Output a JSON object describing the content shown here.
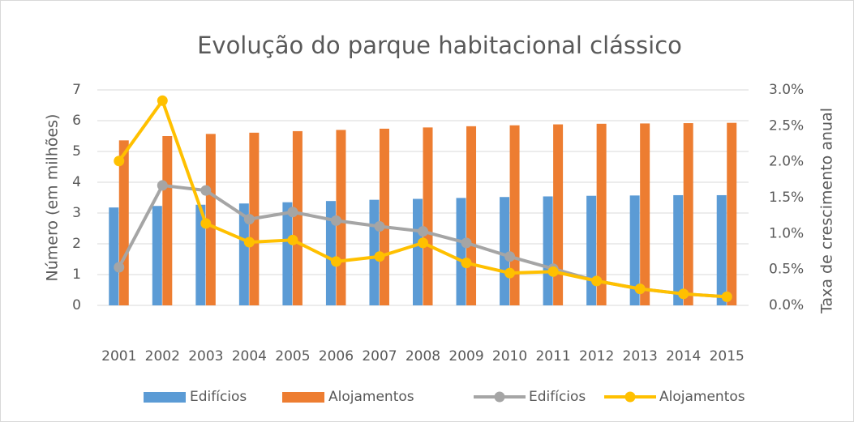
{
  "chart_data": {
    "type": "bar",
    "title": "Evolução do parque habitacional clássico",
    "y_label": "Número (em milhões)",
    "y2_label": "Taxa de crescimento anual",
    "categories": [
      "2001",
      "2002",
      "2003",
      "2004",
      "2005",
      "2006",
      "2007",
      "2008",
      "2009",
      "2010",
      "2011",
      "2012",
      "2013",
      "2014",
      "2015"
    ],
    "series": [
      {
        "name": "Edifícios",
        "type": "bar",
        "color": "#5b9bd5",
        "values": [
          3.18,
          3.23,
          3.27,
          3.31,
          3.35,
          3.39,
          3.43,
          3.46,
          3.49,
          3.52,
          3.54,
          3.56,
          3.57,
          3.58,
          3.58
        ]
      },
      {
        "name": "Alojamentos",
        "type": "bar",
        "color": "#ed7d31",
        "values": [
          5.36,
          5.5,
          5.57,
          5.61,
          5.66,
          5.7,
          5.74,
          5.78,
          5.82,
          5.85,
          5.88,
          5.9,
          5.91,
          5.92,
          5.93
        ]
      },
      {
        "name": "Edifícios",
        "type": "line",
        "axis": "y2",
        "color": "#a5a5a5",
        "values": [
          0.53,
          1.67,
          1.6,
          1.2,
          1.3,
          1.18,
          1.1,
          1.03,
          0.87,
          0.68,
          0.51,
          0.34,
          0.23,
          0.16,
          0.12
        ]
      },
      {
        "name": "Alojamentos",
        "type": "line",
        "axis": "y2",
        "color": "#ffc000",
        "values": [
          2.01,
          2.85,
          1.14,
          0.88,
          0.91,
          0.61,
          0.68,
          0.87,
          0.59,
          0.45,
          0.47,
          0.34,
          0.23,
          0.16,
          0.12
        ]
      }
    ],
    "ylim": [
      0,
      7
    ],
    "yticks": [
      0,
      1,
      2,
      3,
      4,
      5,
      6,
      7
    ],
    "y2lim": [
      0,
      3
    ],
    "y2ticks": [
      {
        "value": 0,
        "label": "0.0%"
      },
      {
        "value": 0.5,
        "label": "0.5%"
      },
      {
        "value": 1,
        "label": "1.0%"
      },
      {
        "value": 1.5,
        "label": "1.5%"
      },
      {
        "value": 2,
        "label": "2.0%"
      },
      {
        "value": 2.5,
        "label": "2.5%"
      },
      {
        "value": 3,
        "label": "3.0%"
      }
    ],
    "grid": true,
    "legend": "bottom"
  }
}
